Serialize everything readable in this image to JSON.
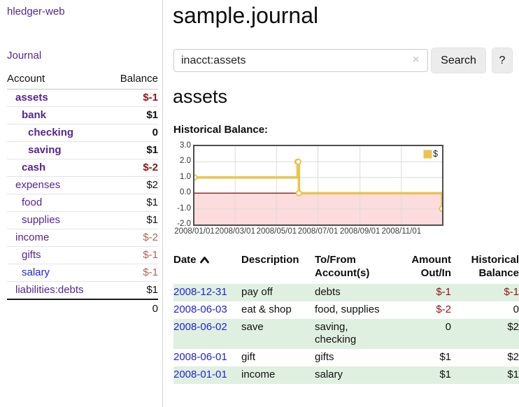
{
  "colors": {
    "accent_purple": "#54278f",
    "link_blue": "#2222dd",
    "negative_strong": "#8f1515",
    "negative_muted": "#b16259",
    "row_green": "#e0f0e0",
    "chart_gold": "#e9c44f",
    "chart_negative_fill": "#fcdcdc",
    "chart_zero_line": "#8b1a1a"
  },
  "sidebar": {
    "logo": "hledger-web",
    "journal_link": "Journal",
    "accounts_table": {
      "headers": {
        "account": "Account",
        "balance": "Balance"
      },
      "rows": [
        {
          "name": "assets",
          "balance": "$-1",
          "depth": 1,
          "bold": true,
          "balance_class": "neg-strong"
        },
        {
          "name": "bank",
          "balance": "$1",
          "depth": 2,
          "bold": true,
          "balance_class": "pos"
        },
        {
          "name": "checking",
          "balance": "0",
          "depth": 3,
          "bold": true,
          "balance_class": "pos"
        },
        {
          "name": "saving",
          "balance": "$1",
          "depth": 3,
          "bold": true,
          "balance_class": "pos"
        },
        {
          "name": "cash",
          "balance": "$-2",
          "depth": 2,
          "bold": true,
          "balance_class": "neg-strong"
        },
        {
          "name": "expenses",
          "balance": "$2",
          "depth": 1,
          "bold": false,
          "balance_class": "pos"
        },
        {
          "name": "food",
          "balance": "$1",
          "depth": 2,
          "bold": false,
          "balance_class": "pos"
        },
        {
          "name": "supplies",
          "balance": "$1",
          "depth": 2,
          "bold": false,
          "balance_class": "pos"
        },
        {
          "name": "income",
          "balance": "$-2",
          "depth": 1,
          "bold": false,
          "balance_class": "neg-muted"
        },
        {
          "name": "gifts",
          "balance": "$-1",
          "depth": 2,
          "bold": false,
          "balance_class": "neg-muted"
        },
        {
          "name": "salary",
          "balance": "$-1",
          "depth": 2,
          "bold": false,
          "balance_class": "neg-muted",
          "link_color": "blue"
        },
        {
          "name": "liabilities:debts",
          "balance": "$1",
          "depth": 1,
          "bold": false,
          "balance_class": "pos"
        }
      ],
      "total": "0"
    }
  },
  "main": {
    "title": "sample.journal",
    "search": {
      "value": "inacct:assets",
      "clear_icon": "×",
      "button": "Search",
      "help_button": "?"
    },
    "account_heading": "assets",
    "chart_label": "Historical Balance:"
  },
  "chart_data": {
    "type": "line",
    "style": "step",
    "title": "Historical Balance",
    "series": [
      {
        "name": "$",
        "color": "#e9c44f",
        "points": [
          [
            "2008-01-01",
            1
          ],
          [
            "2008-06-01",
            2
          ],
          [
            "2008-06-02",
            2
          ],
          [
            "2008-06-03",
            0
          ],
          [
            "2008-12-31",
            -1
          ]
        ]
      }
    ],
    "x_domain": [
      "2008/01/01",
      "2008/12/31"
    ],
    "x_ticks": [
      "2008/01/01",
      "2008/03/01",
      "2008/05/01",
      "2008/07/01",
      "2008/09/01",
      "2008/11/01"
    ],
    "y_ticks": [
      "3.0",
      "2.0",
      "1.0",
      "0.0",
      "-1.0",
      "-2.0"
    ],
    "ylim": [
      -2,
      3
    ],
    "grid": true,
    "negative_fill": "#fcdcdc",
    "zero_line_color": "#8b1a1a",
    "legend": {
      "label": "$",
      "position": "top-right"
    }
  },
  "register_table": {
    "headers": {
      "date": "Date",
      "description": "Description",
      "accounts": "To/From Account(s)",
      "amount": "Amount Out/In",
      "balance": "Historical Balance"
    },
    "rows": [
      {
        "date": "2008-12-31",
        "description": "pay off",
        "accounts": "debts",
        "amount": "$-1",
        "balance": "$-1"
      },
      {
        "date": "2008-06-03",
        "description": "eat & shop",
        "accounts": "food, supplies",
        "amount": "$-2",
        "balance": "0"
      },
      {
        "date": "2008-06-02",
        "description": "save",
        "accounts": "saving, checking",
        "amount": "0",
        "balance": "$2"
      },
      {
        "date": "2008-06-01",
        "description": "gift",
        "accounts": "gifts",
        "amount": "$1",
        "balance": "$2"
      },
      {
        "date": "2008-01-01",
        "description": "income",
        "accounts": "salary",
        "amount": "$1",
        "balance": "$1"
      }
    ]
  }
}
